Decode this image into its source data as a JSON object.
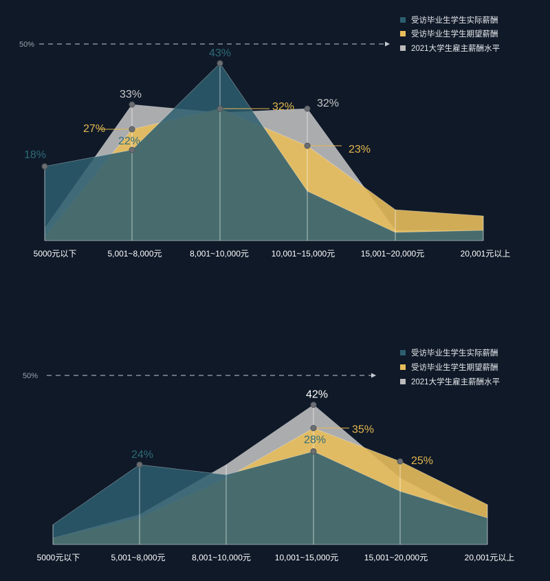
{
  "colors": {
    "background": "#0f1928",
    "actual": "#2d5e6e",
    "expected": "#e7bd5b",
    "employer": "#bcbcbc",
    "label_actual": "#2f6b78",
    "label_expected": "#e5b84f",
    "label_employer": "#c8c8c8",
    "label_employer_2": "#ffffff"
  },
  "chart_data": [
    {
      "type": "area",
      "categories": [
        "5000元以下",
        "5,001~8,000元",
        "8,001~10,000元",
        "10,001~15,000元",
        "15,001~20,000元",
        "20,001元以上"
      ],
      "reference_line": {
        "label": "50%",
        "value": 50
      },
      "ylim": [
        0,
        50
      ],
      "legend": {
        "position": "top-right"
      },
      "series": [
        {
          "name": "受访毕业生学生实际薪酬",
          "color_key": "actual",
          "values": [
            18,
            22,
            43,
            12,
            2,
            2.5
          ]
        },
        {
          "name": "受访毕业生学生期望薪酬",
          "color_key": "expected",
          "values": [
            1,
            27,
            32,
            23,
            7.5,
            6
          ]
        },
        {
          "name": "2021大学生雇主薪酬水平",
          "color_key": "employer",
          "values": [
            3,
            33,
            31,
            32,
            2.5,
            2.5
          ]
        }
      ],
      "annotations": [
        {
          "text": "18%",
          "series": 0,
          "index": 0,
          "color_key": "label_actual"
        },
        {
          "text": "22%",
          "series": 0,
          "index": 1,
          "color_key": "label_actual"
        },
        {
          "text": "43%",
          "series": 0,
          "index": 2,
          "color_key": "label_actual"
        },
        {
          "text": "27%",
          "series": 1,
          "index": 1,
          "color_key": "label_expected"
        },
        {
          "text": "32%",
          "series": 1,
          "index": 2,
          "color_key": "label_expected"
        },
        {
          "text": "23%",
          "series": 1,
          "index": 3,
          "color_key": "label_expected"
        },
        {
          "text": "33%",
          "series": 2,
          "index": 1,
          "color_key": "label_employer"
        },
        {
          "text": "32%",
          "series": 2,
          "index": 3,
          "color_key": "label_employer"
        }
      ]
    },
    {
      "type": "area",
      "categories": [
        "5000元以下",
        "5,001~8,000元",
        "8,001~10,000元",
        "10,001~15,000元",
        "15,001~20,000元",
        "20,001元以上"
      ],
      "reference_line": {
        "label": "50%",
        "value": 50
      },
      "ylim": [
        0,
        50
      ],
      "legend": {
        "position": "top-right"
      },
      "series": [
        {
          "name": "受访毕业生学生实际薪酬",
          "color_key": "actual",
          "values": [
            6,
            24,
            21,
            28,
            16,
            8
          ]
        },
        {
          "name": "受访毕业生学生期望薪酬",
          "color_key": "expected",
          "values": [
            2,
            8,
            20,
            35,
            25,
            12
          ]
        },
        {
          "name": "2021大学生雇主薪酬水平",
          "color_key": "employer",
          "values": [
            2,
            9,
            24,
            42,
            20,
            6
          ]
        }
      ],
      "annotations": [
        {
          "text": "24%",
          "series": 0,
          "index": 1,
          "color_key": "label_actual"
        },
        {
          "text": "28%",
          "series": 0,
          "index": 3,
          "color_key": "label_actual"
        },
        {
          "text": "35%",
          "series": 1,
          "index": 3,
          "color_key": "label_expected"
        },
        {
          "text": "25%",
          "series": 1,
          "index": 4,
          "color_key": "label_expected"
        },
        {
          "text": "42%",
          "series": 2,
          "index": 3,
          "color_key": "label_employer_2"
        }
      ]
    }
  ]
}
